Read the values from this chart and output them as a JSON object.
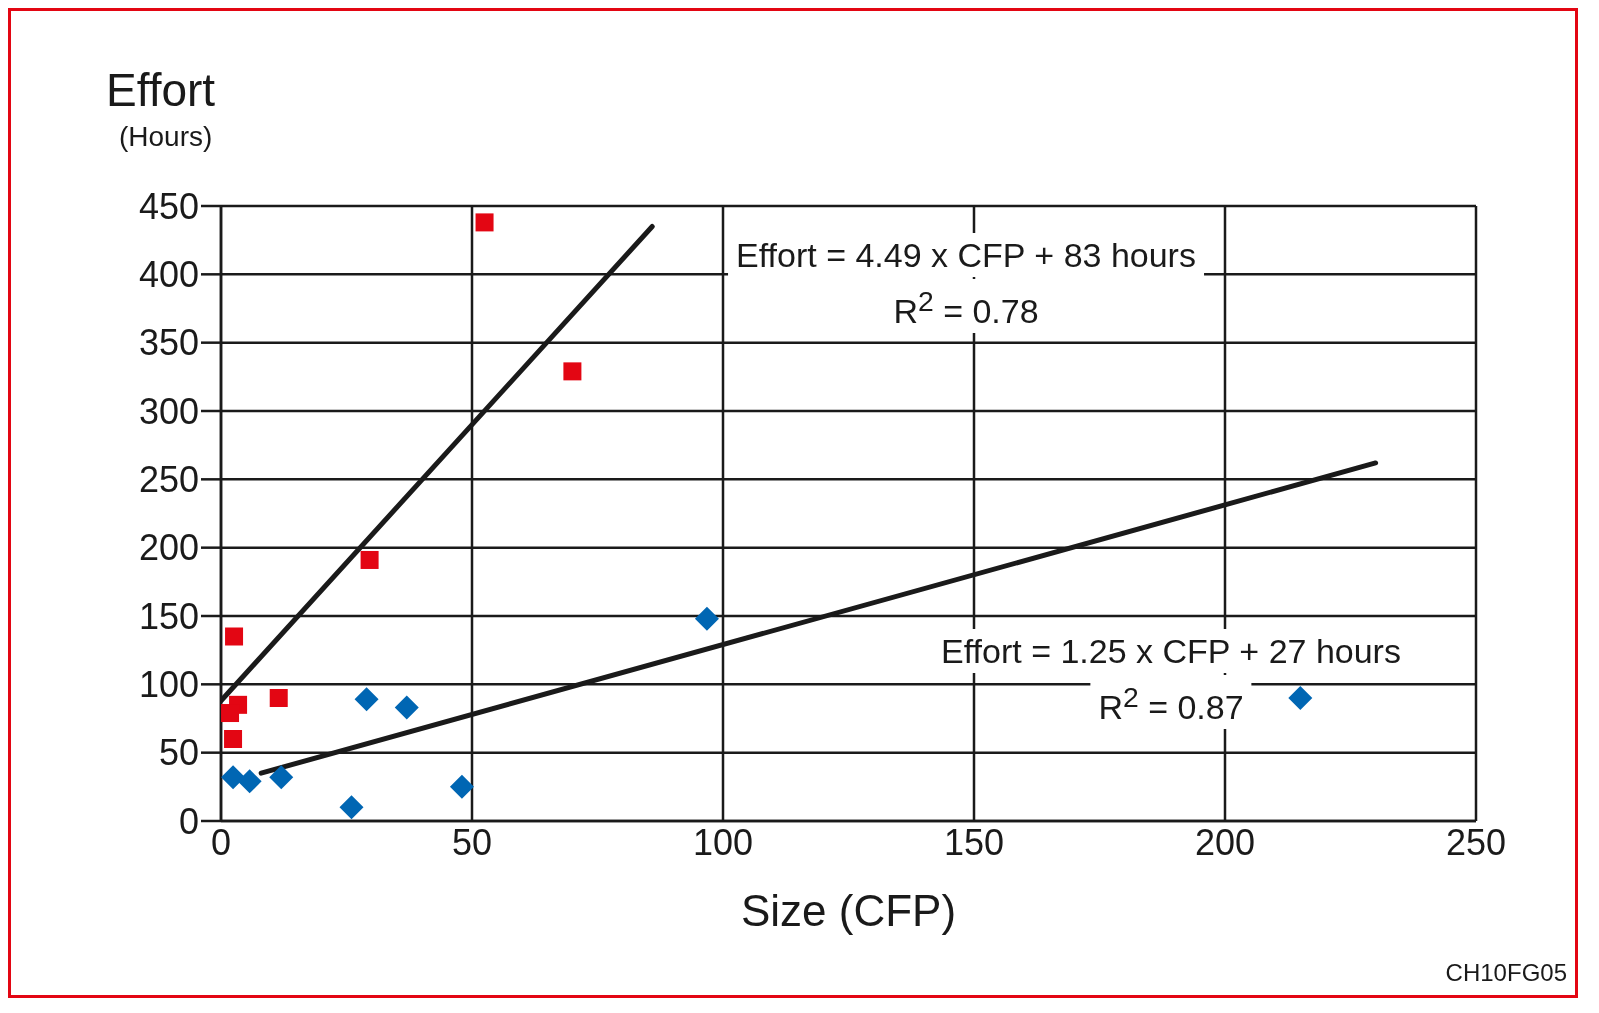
{
  "chart_data": {
    "type": "scatter",
    "title": "Effort",
    "subtitle": "(Hours)",
    "xlabel": "Size (CFP)",
    "xlim": [
      0,
      250
    ],
    "xticks": [
      0,
      50,
      100,
      150,
      200,
      250
    ],
    "ylim": [
      0,
      450
    ],
    "yticks": [
      0,
      50,
      100,
      150,
      200,
      250,
      300,
      350,
      400,
      450
    ],
    "grid": true,
    "legend": false,
    "series": [
      {
        "color": "#e30613",
        "marker": "square",
        "x": [
          52.5,
          70,
          29.6,
          2.6,
          11.5,
          3.4,
          1.8,
          2.4
        ],
        "values": [
          438,
          329,
          191,
          135,
          90,
          85,
          79,
          60
        ]
      },
      {
        "color": "#0066b3",
        "marker": "diamond",
        "x": [
          96.8,
          215,
          29,
          37,
          12,
          2.4,
          5.7,
          26,
          48
        ],
        "values": [
          148,
          90,
          89,
          83,
          32,
          32,
          29,
          10,
          25
        ]
      },
      {
        "type": "line",
        "color": "#1a1a1a",
        "x": [
          0,
          85.9
        ],
        "values": [
          88,
          435
        ]
      },
      {
        "type": "line",
        "color": "#1a1a1a",
        "x": [
          8,
          230
        ],
        "values": [
          35,
          262
        ]
      }
    ],
    "annotations": [
      "Effort = 4.49 x CFP + 83 hours",
      "R$^{2}$ = 0.78",
      "Effort = 1.25 x CFP + 27 hours",
      "R$^{2}$ = 0.87",
      "CH10FG05"
    ]
  }
}
